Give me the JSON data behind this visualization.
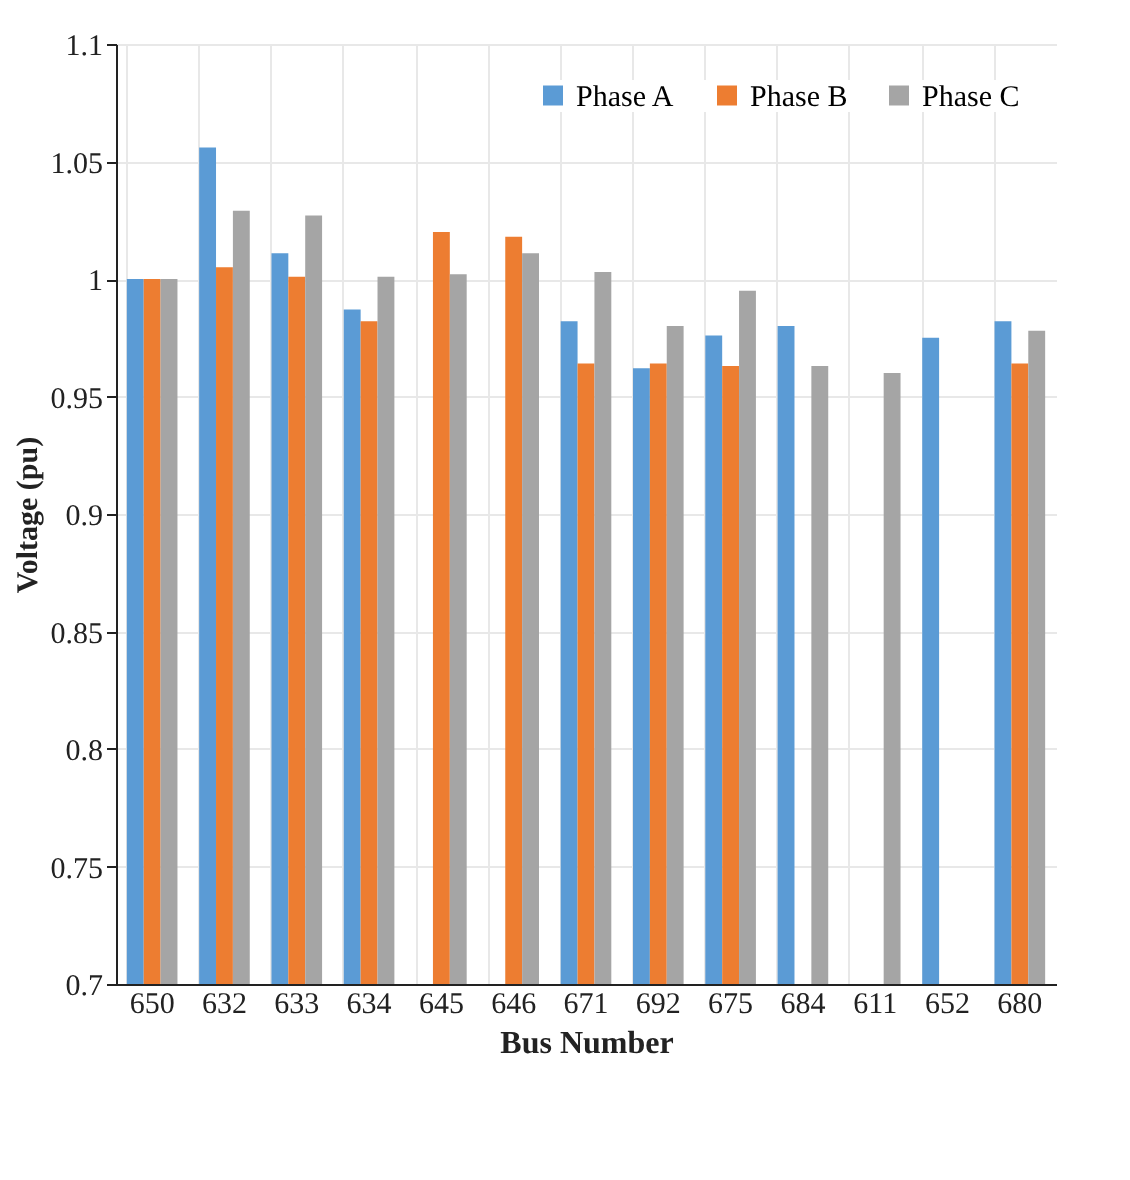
{
  "chart_data": {
    "type": "bar",
    "xlabel": "Bus Number",
    "ylabel": "Voltage (pu)",
    "categories": [
      "650",
      "632",
      "633",
      "634",
      "645",
      "646",
      "671",
      "692",
      "675",
      "684",
      "611",
      "652",
      "680"
    ],
    "series": [
      {
        "name": "Phase A",
        "color": "#5b9bd5",
        "values": [
          1.0,
          1.056,
          1.011,
          0.987,
          null,
          null,
          0.982,
          0.962,
          0.976,
          0.98,
          null,
          0.975,
          0.982
        ]
      },
      {
        "name": "Phase B",
        "color": "#ed7d31",
        "values": [
          1.0,
          1.005,
          1.001,
          0.982,
          1.02,
          1.018,
          0.964,
          0.964,
          0.963,
          null,
          null,
          null,
          0.964
        ]
      },
      {
        "name": "Phase C",
        "color": "#a5a5a5",
        "values": [
          1.0,
          1.029,
          1.027,
          1.001,
          1.002,
          1.011,
          1.003,
          0.98,
          0.995,
          0.963,
          0.96,
          null,
          0.978
        ]
      }
    ],
    "ylim": [
      0.7,
      1.1
    ],
    "yticks": [
      0.7,
      0.75,
      0.8,
      0.85,
      0.9,
      0.95,
      1,
      1.05,
      1.1
    ],
    "grid": true,
    "legend": "top right"
  }
}
